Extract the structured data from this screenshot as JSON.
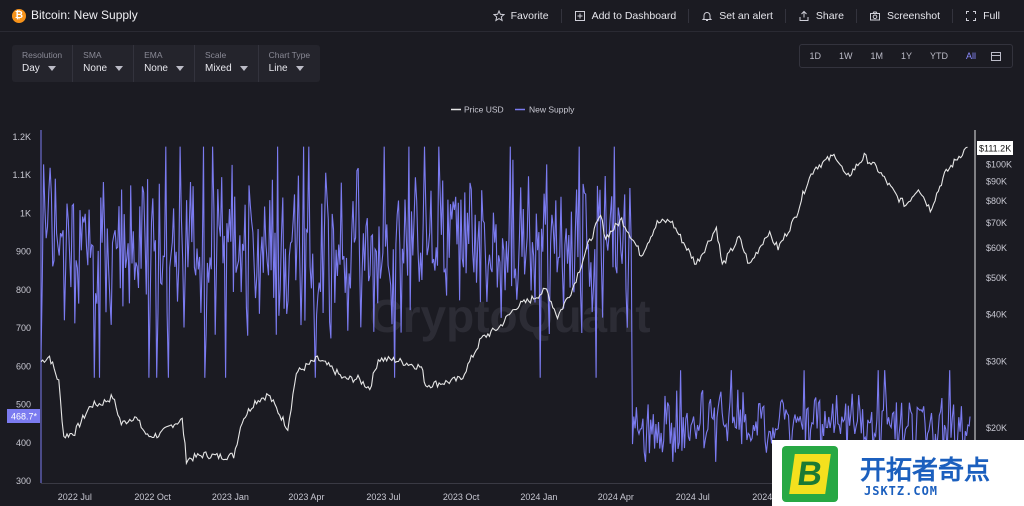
{
  "header": {
    "coin_symbol": "₿",
    "title": "Bitcoin: New Supply",
    "actions": [
      {
        "label": "Favorite",
        "icon": "star-icon"
      },
      {
        "label": "Add to Dashboard",
        "icon": "dashboard-add-icon"
      },
      {
        "label": "Set an alert",
        "icon": "bell-icon"
      },
      {
        "label": "Share",
        "icon": "share-icon"
      },
      {
        "label": "Screenshot",
        "icon": "camera-icon"
      },
      {
        "label": "Full",
        "icon": "fullscreen-icon"
      }
    ]
  },
  "controls": [
    {
      "label": "Resolution",
      "value": "Day"
    },
    {
      "label": "SMA",
      "value": "None"
    },
    {
      "label": "EMA",
      "value": "None"
    },
    {
      "label": "Scale",
      "value": "Mixed"
    },
    {
      "label": "Chart Type",
      "value": "Line"
    }
  ],
  "ranges": [
    "1D",
    "1W",
    "1M",
    "1Y",
    "YTD",
    "All"
  ],
  "active_range": "All",
  "watermark": {
    "brand": "CryptoQuant",
    "site_cn": "开拓者奇点",
    "site_url": "JSKTZ.COM",
    "logo_letter": "B"
  },
  "colors": {
    "background": "#1b1b22",
    "supply_line": "#7b7bf0",
    "price_line": "#e6e6e6",
    "accent": "#8b8bff",
    "btc_orange": "#f7931a"
  },
  "chart_data": {
    "type": "line",
    "legend": [
      "Price USD",
      "New Supply"
    ],
    "legend_position": "top-center",
    "grid": false,
    "x_tick_labels": [
      "2022 Jul",
      "2022 Oct",
      "2023 Jan",
      "2023 Apr",
      "2023 Jul",
      "2023 Oct",
      "2024 Jan",
      "2024 Apr",
      "2024 Jul",
      "2024 Oct"
    ],
    "left_axis": {
      "series": "New Supply",
      "ticks": [
        "1.2K",
        "1.1K",
        "1K",
        "900",
        "800",
        "700",
        "600",
        "500",
        "400",
        "300"
      ],
      "tick_values": [
        1200,
        1100,
        1000,
        900,
        800,
        700,
        600,
        500,
        400,
        300
      ],
      "ylim": [
        300,
        1200
      ],
      "last_value_label": "468.7*"
    },
    "right_axis": {
      "series": "Price USD",
      "scale": "log",
      "ticks": [
        "$100K",
        "$90K",
        "$80K",
        "$70K",
        "$60K",
        "$50K",
        "$40K",
        "$30K",
        "$20K"
      ],
      "tick_values": [
        100000,
        90000,
        80000,
        70000,
        60000,
        50000,
        40000,
        30000,
        20000
      ],
      "last_value_label": "$111.2K"
    },
    "x_range": [
      "2022-05-22",
      "2025-05-25"
    ],
    "series": [
      {
        "name": "Price USD",
        "color": "#e6e6e6",
        "points": [
          [
            "2022-05-22",
            30000
          ],
          [
            "2022-06-01",
            31000
          ],
          [
            "2022-06-12",
            26500
          ],
          [
            "2022-06-18",
            19000
          ],
          [
            "2022-07-01",
            19500
          ],
          [
            "2022-07-20",
            23000
          ],
          [
            "2022-08-01",
            23200
          ],
          [
            "2022-08-15",
            24200
          ],
          [
            "2022-08-25",
            20500
          ],
          [
            "2022-09-10",
            21500
          ],
          [
            "2022-09-25",
            19000
          ],
          [
            "2022-10-10",
            19200
          ],
          [
            "2022-10-25",
            20500
          ],
          [
            "2022-11-05",
            21000
          ],
          [
            "2022-11-10",
            16500
          ],
          [
            "2022-12-01",
            17000
          ],
          [
            "2022-12-20",
            16800
          ],
          [
            "2023-01-05",
            16900
          ],
          [
            "2023-01-15",
            21000
          ],
          [
            "2023-01-30",
            23500
          ],
          [
            "2023-02-15",
            24500
          ],
          [
            "2023-03-10",
            20000
          ],
          [
            "2023-03-20",
            28000
          ],
          [
            "2023-04-14",
            30500
          ],
          [
            "2023-05-01",
            28800
          ],
          [
            "2023-05-15",
            27000
          ],
          [
            "2023-06-01",
            27000
          ],
          [
            "2023-06-15",
            25500
          ],
          [
            "2023-06-25",
            30500
          ],
          [
            "2023-07-15",
            30300
          ],
          [
            "2023-08-15",
            29000
          ],
          [
            "2023-08-20",
            26000
          ],
          [
            "2023-09-15",
            26500
          ],
          [
            "2023-10-01",
            27000
          ],
          [
            "2023-10-25",
            34500
          ],
          [
            "2023-11-15",
            37000
          ],
          [
            "2023-12-05",
            42000
          ],
          [
            "2023-12-20",
            43500
          ],
          [
            "2024-01-10",
            46500
          ],
          [
            "2024-01-23",
            39500
          ],
          [
            "2024-02-10",
            47000
          ],
          [
            "2024-02-28",
            61000
          ],
          [
            "2024-03-14",
            73000
          ],
          [
            "2024-03-20",
            64000
          ],
          [
            "2024-04-08",
            71500
          ],
          [
            "2024-04-20",
            64000
          ],
          [
            "2024-05-01",
            57500
          ],
          [
            "2024-05-20",
            70000
          ],
          [
            "2024-06-05",
            71000
          ],
          [
            "2024-06-24",
            60000
          ],
          [
            "2024-07-05",
            54500
          ],
          [
            "2024-07-29",
            68000
          ],
          [
            "2024-08-05",
            54000
          ],
          [
            "2024-08-25",
            64000
          ],
          [
            "2024-09-06",
            54000
          ],
          [
            "2024-09-28",
            66000
          ],
          [
            "2024-10-10",
            60000
          ],
          [
            "2024-10-30",
            72000
          ],
          [
            "2024-11-12",
            88000
          ],
          [
            "2024-11-22",
            98000
          ],
          [
            "2024-12-17",
            106000
          ],
          [
            "2024-12-30",
            92000
          ],
          [
            "2025-01-20",
            105000
          ],
          [
            "2025-02-05",
            97000
          ],
          [
            "2025-02-28",
            82000
          ],
          [
            "2025-03-10",
            78000
          ],
          [
            "2025-03-25",
            87000
          ],
          [
            "2025-04-08",
            76000
          ],
          [
            "2025-04-25",
            94000
          ],
          [
            "2025-05-10",
            104000
          ],
          [
            "2025-05-22",
            111200
          ]
        ]
      },
      {
        "name": "New Supply",
        "color": "#7b7bf0",
        "halving_date": "2024-04-20",
        "pre_halving_mean": 900,
        "pre_halving_range": [
          570,
          1175
        ],
        "post_halving_mean": 450,
        "post_halving_range": [
          350,
          590
        ],
        "last_value": 468.7
      }
    ]
  }
}
